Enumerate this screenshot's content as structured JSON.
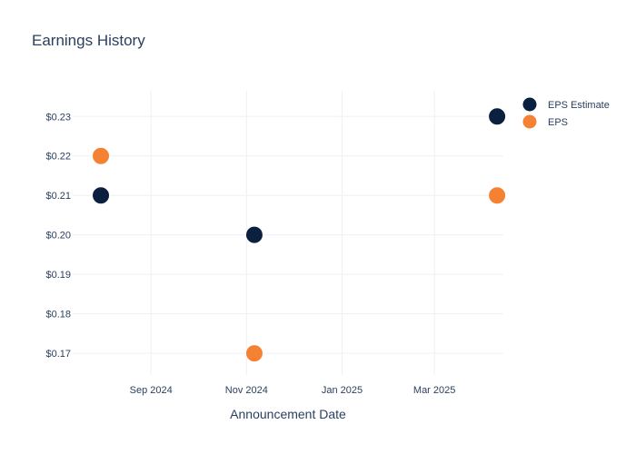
{
  "chart_data": {
    "type": "scatter",
    "title": "Earnings History",
    "xlabel": "Announcement Date",
    "ylabel": "",
    "x_axis_type": "date",
    "xlim": [
      "2024-07-13",
      "2025-04-14"
    ],
    "ylim": [
      0.1645,
      0.2365
    ],
    "x_ticks": [
      {
        "value": "2024-09-01",
        "label": "Sep 2024"
      },
      {
        "value": "2024-11-01",
        "label": "Nov 2024"
      },
      {
        "value": "2025-01-01",
        "label": "Jan 2025"
      },
      {
        "value": "2025-03-01",
        "label": "Mar 2025"
      }
    ],
    "y_ticks": [
      {
        "value": 0.17,
        "label": "$0.17"
      },
      {
        "value": 0.18,
        "label": "$0.18"
      },
      {
        "value": 0.19,
        "label": "$0.19"
      },
      {
        "value": 0.2,
        "label": "$0.20"
      },
      {
        "value": 0.21,
        "label": "$0.21"
      },
      {
        "value": 0.22,
        "label": "$0.22"
      },
      {
        "value": 0.23,
        "label": "$0.23"
      }
    ],
    "grid": true,
    "legend_position": "top-right",
    "series": [
      {
        "name": "EPS Estimate",
        "color": "#0b1f3f",
        "points": [
          {
            "x": "2024-07-31",
            "y": 0.21
          },
          {
            "x": "2024-11-06",
            "y": 0.2
          },
          {
            "x": "2025-04-10",
            "y": 0.23
          }
        ]
      },
      {
        "name": "EPS",
        "color": "#f58233",
        "points": [
          {
            "x": "2024-07-31",
            "y": 0.22
          },
          {
            "x": "2024-11-06",
            "y": 0.17
          },
          {
            "x": "2025-04-10",
            "y": 0.21
          }
        ]
      }
    ]
  }
}
